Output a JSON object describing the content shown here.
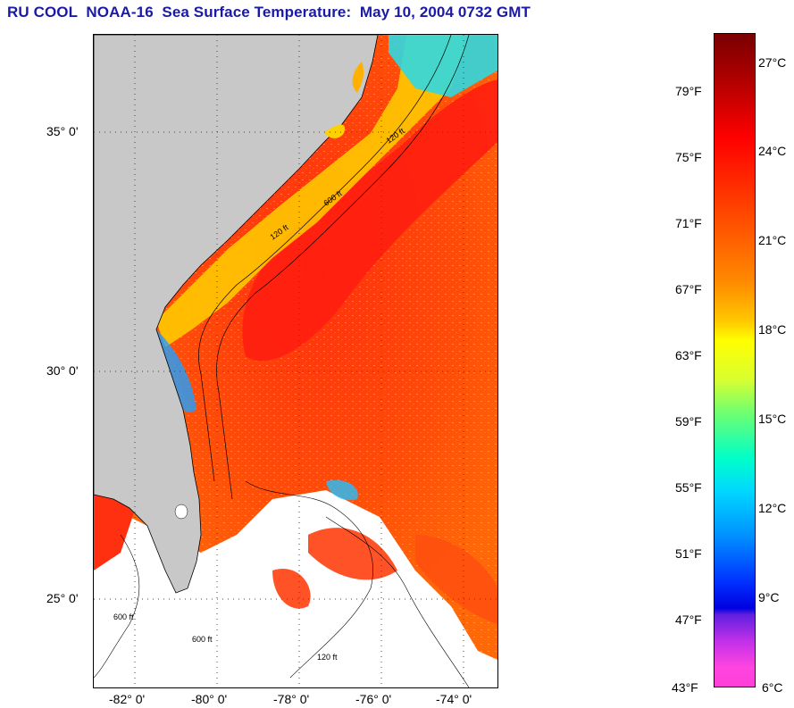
{
  "title": "RU COOL  NOAA-16  Sea Surface Temperature:  May 10, 2004 0732 GMT",
  "map": {
    "lat_labels": [
      "35° 0'",
      "30° 0'",
      "25° 0'"
    ],
    "lon_labels": [
      "-82° 0'",
      "-80° 0'",
      "-78° 0'",
      "-76° 0'",
      "-74° 0'"
    ],
    "isobath_labels": [
      "120 ft",
      "600 ft",
      "120 ft",
      "600 ft",
      "120 ft",
      "600 ft"
    ],
    "colors": {
      "land": "#c8c8c8",
      "no_data": "#ffffff",
      "warm": "#ff3a00",
      "gulf_stream": "#ff2020",
      "cool_shelf": "#ffd000",
      "grid": "#444444"
    }
  },
  "colorbar": {
    "fahrenheit_labels": [
      "79°F",
      "75°F",
      "71°F",
      "67°F",
      "63°F",
      "59°F",
      "55°F",
      "51°F",
      "47°F",
      "43°F"
    ],
    "celsius_labels": [
      "27°C",
      "24°C",
      "21°C",
      "18°C",
      "15°C",
      "12°C",
      "9°C",
      "6°C"
    ]
  }
}
